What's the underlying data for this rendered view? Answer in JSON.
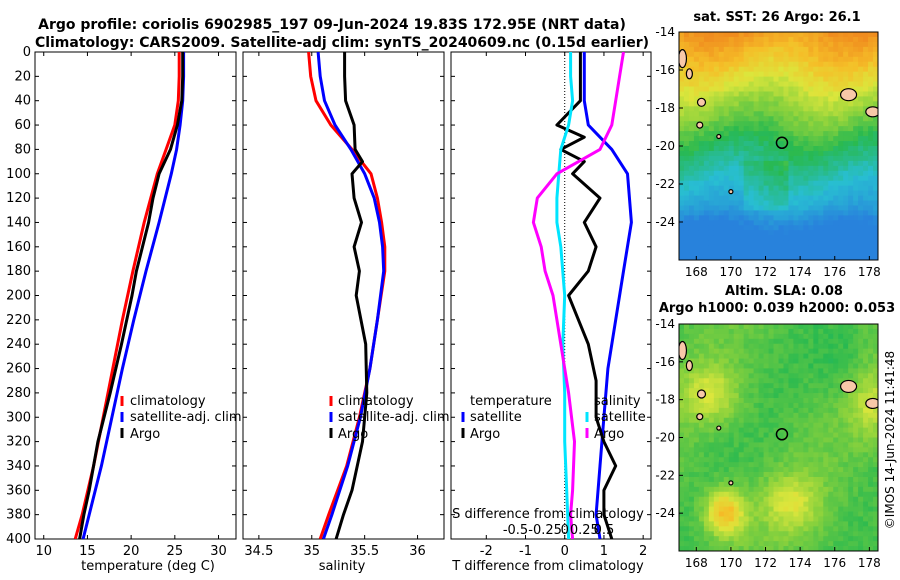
{
  "figure": {
    "title_line1": "Argo profile: coriolis 6902985_197 09-Jun-2024 19.83S 172.95E (NRT data)",
    "title_line2": "Climatology: CARS2009. Satellite-adj clim: synTS_20240609.nc (0.15d earlier)",
    "watermark": "©IMOS 14-Jun-2024 11:41:48"
  },
  "colors": {
    "climatology": "#ff0000",
    "satellite": "#0000ff",
    "argo": "#000000",
    "sal_sat": "#00e5ff",
    "sal_argo": "#ff00ff"
  },
  "chart_data": [
    {
      "id": "temperature",
      "type": "line",
      "xlabel": "temperature (deg C)",
      "ylabel": "",
      "xlim": [
        9,
        32
      ],
      "ylim": [
        400,
        0
      ],
      "xticks": [
        10,
        15,
        20,
        25,
        30
      ],
      "yticks": [
        0,
        20,
        40,
        60,
        80,
        100,
        120,
        140,
        160,
        180,
        200,
        220,
        240,
        260,
        280,
        300,
        320,
        340,
        360,
        380,
        400
      ],
      "legend": [
        "climatology",
        "satellite-adj. clim",
        "Argo"
      ],
      "series": [
        {
          "name": "climatology",
          "color": "#ff0000",
          "depth": [
            0,
            20,
            40,
            60,
            80,
            100,
            140,
            180,
            220,
            260,
            300,
            340,
            380,
            400
          ],
          "values": [
            25.5,
            25.5,
            25.4,
            25.0,
            24.0,
            23.0,
            21.5,
            20.2,
            19.0,
            17.9,
            16.8,
            15.7,
            14.4,
            13.6
          ]
        },
        {
          "name": "satellite-adj. clim",
          "color": "#0000ff",
          "depth": [
            0,
            20,
            40,
            60,
            80,
            100,
            140,
            180,
            220,
            260,
            300,
            340,
            380,
            400
          ],
          "values": [
            26.0,
            26.0,
            25.9,
            25.6,
            25.2,
            24.6,
            23.2,
            21.7,
            20.3,
            19.0,
            17.8,
            16.6,
            15.2,
            14.5
          ]
        },
        {
          "name": "Argo",
          "color": "#000000",
          "depth": [
            0,
            20,
            40,
            60,
            80,
            100,
            120,
            140,
            160,
            180,
            200,
            240,
            280,
            320,
            360,
            380,
            400
          ],
          "values": [
            25.9,
            25.9,
            25.8,
            25.3,
            24.5,
            23.2,
            22.5,
            22.0,
            21.3,
            20.6,
            20.1,
            18.9,
            17.6,
            16.2,
            15.2,
            14.6,
            14.1
          ]
        }
      ]
    },
    {
      "id": "salinity",
      "type": "line",
      "xlabel": "salinity",
      "xlim": [
        34.35,
        36.25
      ],
      "ylim": [
        400,
        0
      ],
      "xticks": [
        34.5,
        35,
        35.5,
        36
      ],
      "xticklabels": [
        "34.5",
        "35",
        "35.5",
        "36"
      ],
      "legend": [
        "climatology",
        "satellite-adj. clim",
        "Argo"
      ],
      "series": [
        {
          "name": "climatology",
          "color": "#ff0000",
          "depth": [
            0,
            20,
            40,
            60,
            80,
            100,
            120,
            140,
            160,
            180,
            220,
            260,
            300,
            340,
            380,
            400
          ],
          "values": [
            34.97,
            34.99,
            35.04,
            35.18,
            35.38,
            35.56,
            35.62,
            35.66,
            35.69,
            35.69,
            35.62,
            35.55,
            35.45,
            35.33,
            35.16,
            35.08
          ]
        },
        {
          "name": "satellite-adj. clim",
          "color": "#0000ff",
          "depth": [
            0,
            20,
            40,
            60,
            80,
            100,
            120,
            140,
            160,
            180,
            220,
            260,
            300,
            340,
            380,
            400
          ],
          "values": [
            35.06,
            35.08,
            35.12,
            35.22,
            35.37,
            35.5,
            35.59,
            35.64,
            35.67,
            35.68,
            35.62,
            35.55,
            35.46,
            35.34,
            35.19,
            35.11
          ]
        },
        {
          "name": "Argo",
          "color": "#000000",
          "depth": [
            0,
            20,
            40,
            60,
            80,
            90,
            100,
            120,
            140,
            160,
            180,
            200,
            240,
            280,
            320,
            360,
            380,
            400
          ],
          "values": [
            35.31,
            35.31,
            35.32,
            35.4,
            35.41,
            35.48,
            35.38,
            35.4,
            35.47,
            35.4,
            35.45,
            35.42,
            35.51,
            35.52,
            35.48,
            35.38,
            35.3,
            35.23
          ]
        }
      ]
    },
    {
      "id": "differences",
      "type": "line",
      "xlabel": "T difference from climatology",
      "xlabel_top": "S difference from climatology",
      "xlim": [
        -2.9,
        2.2
      ],
      "ylim": [
        400,
        0
      ],
      "xticks": [
        -2,
        -1,
        0,
        1,
        2
      ],
      "xticks_top": [
        "-0.5",
        "-0.25",
        "0",
        "0.25",
        "0.5"
      ],
      "legend_t": {
        "title": "temperature",
        "items": [
          "satellite",
          "Argo"
        ]
      },
      "legend_s": {
        "title": "salinity",
        "items": [
          "satellite",
          "Argo"
        ]
      },
      "series": [
        {
          "name": "T satellite",
          "color": "#0000ff",
          "depth": [
            0,
            20,
            40,
            60,
            80,
            100,
            140,
            180,
            220,
            260,
            300,
            340,
            380,
            400
          ],
          "values": [
            0.5,
            0.5,
            0.5,
            0.6,
            1.2,
            1.6,
            1.7,
            1.5,
            1.3,
            1.1,
            1.0,
            0.9,
            0.8,
            0.9
          ]
        },
        {
          "name": "T Argo",
          "color": "#000000",
          "depth": [
            0,
            20,
            40,
            60,
            70,
            80,
            90,
            100,
            120,
            140,
            160,
            180,
            200,
            240,
            270,
            300,
            320,
            340,
            360,
            380,
            400
          ],
          "values": [
            0.4,
            0.4,
            0.4,
            -0.2,
            0.5,
            -0.1,
            0.5,
            0.2,
            0.9,
            0.5,
            0.8,
            0.6,
            0.1,
            0.6,
            0.8,
            0.8,
            1.0,
            1.3,
            1.0,
            1.0,
            1.2
          ]
        },
        {
          "name": "S satellite",
          "color": "#00e5ff",
          "depth": [
            0,
            20,
            40,
            60,
            80,
            100,
            120,
            140,
            160,
            200,
            240,
            280,
            320,
            360,
            400
          ],
          "values": [
            0.15,
            0.15,
            0.2,
            0.1,
            -0.1,
            -0.15,
            -0.2,
            -0.2,
            -0.1,
            0.0,
            -0.05,
            0.0,
            0.0,
            0.05,
            0.1
          ]
        },
        {
          "name": "S Argo",
          "color": "#ff00ff",
          "depth": [
            0,
            20,
            40,
            60,
            80,
            100,
            120,
            140,
            160,
            180,
            200,
            240,
            280,
            320,
            360,
            380,
            400
          ],
          "values": [
            1.5,
            1.4,
            1.3,
            1.2,
            0.9,
            -0.2,
            -0.7,
            -0.8,
            -0.6,
            -0.5,
            -0.3,
            -0.1,
            0.1,
            0.25,
            0.2,
            0.15,
            0.2
          ]
        }
      ]
    },
    {
      "id": "sst_map",
      "type": "heatmap",
      "title": "sat. SST: 26 Argo: 26.1",
      "xlim": [
        167,
        178.5
      ],
      "ylim": [
        -26,
        -14
      ],
      "xticks": [
        168,
        170,
        172,
        174,
        176,
        178
      ],
      "yticks": [
        -14,
        -16,
        -18,
        -20,
        -22,
        -24
      ],
      "marker": {
        "lon": 172.95,
        "lat": -19.83
      }
    },
    {
      "id": "sla_map",
      "type": "heatmap",
      "title_line1": "Altim. SLA: 0.08",
      "title_line2": "Argo h1000: 0.039 h2000: 0.053",
      "xlim": [
        167,
        178.5
      ],
      "ylim": [
        -26,
        -14
      ],
      "xticks": [
        168,
        170,
        172,
        174,
        176,
        178
      ],
      "yticks": [
        -14,
        -16,
        -18,
        -20,
        -22,
        -24
      ],
      "marker": {
        "lon": 172.95,
        "lat": -19.83
      }
    }
  ]
}
